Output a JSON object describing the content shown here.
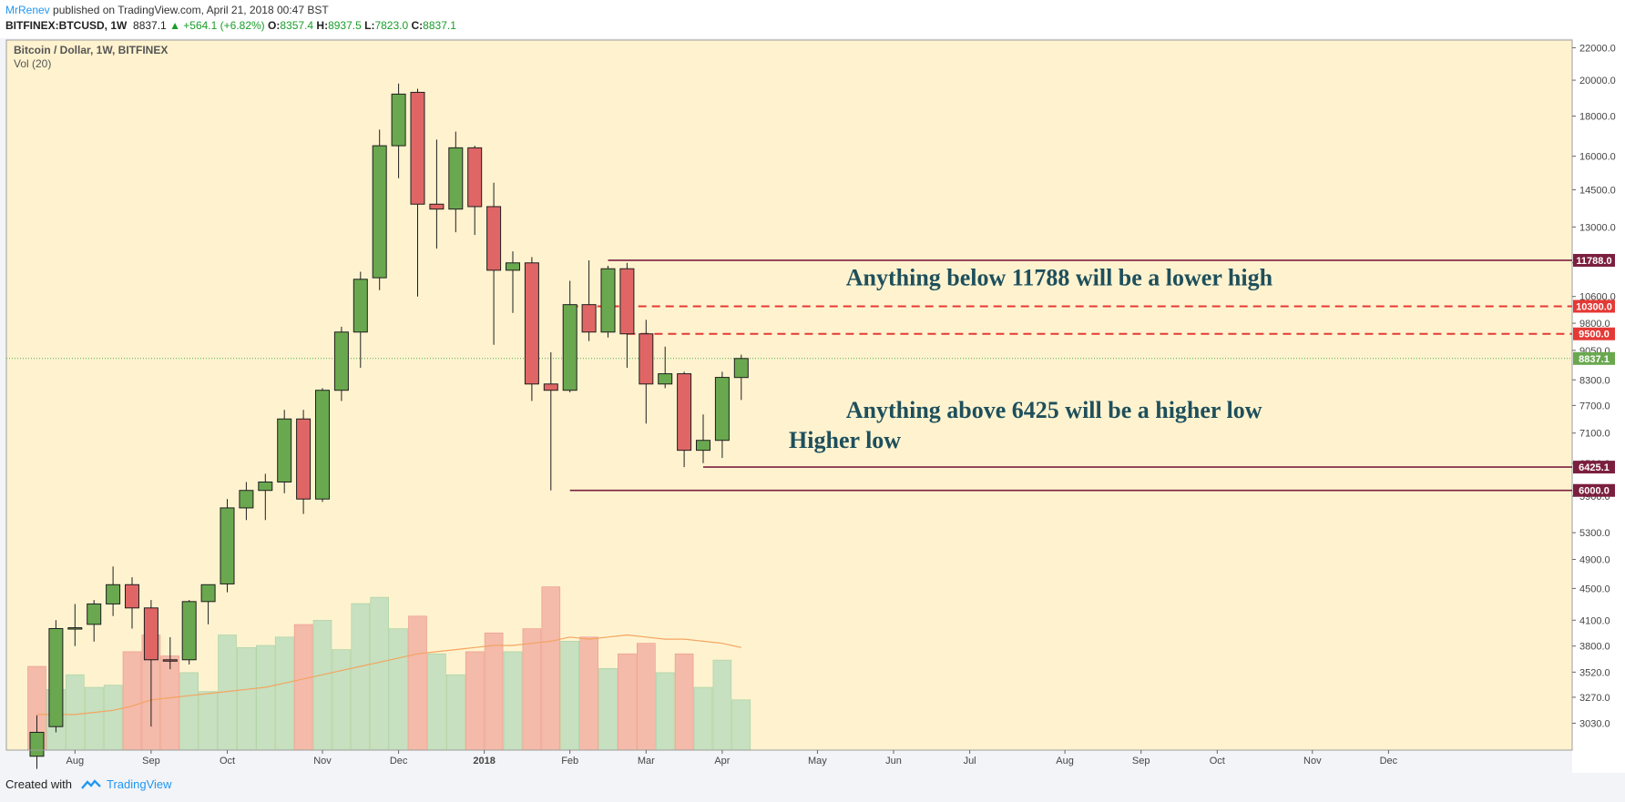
{
  "header": {
    "author": "MrRenev",
    "published": " published on TradingView.com, April 21, 2018 00:47 BST",
    "symbol": "BITFINEX:BTCUSD, 1W",
    "last": "8837.1",
    "change": "▲ +564.1 (+6.82%)",
    "o_label": "O:",
    "o_value": "8357.4",
    "h_label": "H:",
    "h_value": "8937.5",
    "l_label": "L:",
    "l_value": "7823.0",
    "c_label": "C:",
    "c_value": "8837.1"
  },
  "footer": {
    "created_with": "Created with",
    "brand": "TradingView"
  },
  "colors": {
    "bg": "#fff3cf",
    "up": "#6aa84f",
    "down": "#e06666",
    "vol_up": "#c6e0c0",
    "vol_down": "#f4baaa",
    "ma": "#f4a460",
    "level_line": "#7b1f3e",
    "dashed": "#e53935"
  },
  "chart_data": {
    "type": "candlestick",
    "title": "Bitcoin / Dollar, 1W, BITFINEX",
    "indicator_label": "Vol (20)",
    "y_scale": "log",
    "ylim": [
      2800,
      22500
    ],
    "y_ticks": [
      22000.0,
      20000.0,
      18000.0,
      16000.0,
      14500.0,
      13000.0,
      11700.0,
      10600.0,
      9800.0,
      9050.0,
      8300.0,
      7700.0,
      7100.0,
      6500.0,
      5900.0,
      5300.0,
      4900.0,
      4500.0,
      4100.0,
      3800.0,
      3520.0,
      3270.0,
      3030.0
    ],
    "x_ticks": [
      {
        "label": "Aug",
        "week": 2
      },
      {
        "label": "Sep",
        "week": 6
      },
      {
        "label": "Oct",
        "week": 10
      },
      {
        "label": "Nov",
        "week": 15
      },
      {
        "label": "Dec",
        "week": 19
      },
      {
        "label": "2018",
        "week": 23.5
      },
      {
        "label": "Feb",
        "week": 28
      },
      {
        "label": "Mar",
        "week": 32
      },
      {
        "label": "Apr",
        "week": 36
      },
      {
        "label": "May",
        "week": 41
      },
      {
        "label": "Jun",
        "week": 45
      },
      {
        "label": "Jul",
        "week": 49
      },
      {
        "label": "Aug",
        "week": 54
      },
      {
        "label": "Sep",
        "week": 58
      },
      {
        "label": "Oct",
        "week": 62
      },
      {
        "label": "Nov",
        "week": 67
      },
      {
        "label": "Dec",
        "week": 71
      }
    ],
    "candles": [
      {
        "o": 2750,
        "h": 3100,
        "l": 2650,
        "c": 2950
      },
      {
        "o": 3000,
        "h": 4100,
        "l": 2950,
        "c": 4000
      },
      {
        "o": 4000,
        "h": 4300,
        "l": 3800,
        "c": 4010
      },
      {
        "o": 4050,
        "h": 4350,
        "l": 3850,
        "c": 4300
      },
      {
        "o": 4300,
        "h": 4800,
        "l": 4150,
        "c": 4550
      },
      {
        "o": 4550,
        "h": 4650,
        "l": 4000,
        "c": 4250
      },
      {
        "o": 4250,
        "h": 4350,
        "l": 3000,
        "c": 3650
      },
      {
        "o": 3650,
        "h": 3900,
        "l": 3550,
        "c": 3640
      },
      {
        "o": 3650,
        "h": 4350,
        "l": 3600,
        "c": 4330
      },
      {
        "o": 4330,
        "h": 4550,
        "l": 4050,
        "c": 4550
      },
      {
        "o": 4560,
        "h": 5850,
        "l": 4450,
        "c": 5700
      },
      {
        "o": 5700,
        "h": 6150,
        "l": 5500,
        "c": 6000
      },
      {
        "o": 6000,
        "h": 6300,
        "l": 5500,
        "c": 6150
      },
      {
        "o": 6150,
        "h": 7600,
        "l": 5950,
        "c": 7400
      },
      {
        "o": 7400,
        "h": 7600,
        "l": 5600,
        "c": 5850
      },
      {
        "o": 5850,
        "h": 8100,
        "l": 5800,
        "c": 8050
      },
      {
        "o": 8050,
        "h": 9700,
        "l": 7800,
        "c": 9550
      },
      {
        "o": 9550,
        "h": 11400,
        "l": 8600,
        "c": 11150
      },
      {
        "o": 11200,
        "h": 17300,
        "l": 10800,
        "c": 16500
      },
      {
        "o": 16500,
        "h": 19800,
        "l": 15000,
        "c": 19200
      },
      {
        "o": 19300,
        "h": 19500,
        "l": 10600,
        "c": 13900
      },
      {
        "o": 13900,
        "h": 16800,
        "l": 12200,
        "c": 13700
      },
      {
        "o": 13700,
        "h": 17200,
        "l": 12800,
        "c": 16400
      },
      {
        "o": 16400,
        "h": 16500,
        "l": 12700,
        "c": 13800
      },
      {
        "o": 13800,
        "h": 14800,
        "l": 9200,
        "c": 11450
      },
      {
        "o": 11450,
        "h": 12100,
        "l": 10100,
        "c": 11700
      },
      {
        "o": 11700,
        "h": 11900,
        "l": 7800,
        "c": 8200
      },
      {
        "o": 8200,
        "h": 9000,
        "l": 6000,
        "c": 8050
      },
      {
        "o": 8050,
        "h": 11100,
        "l": 8000,
        "c": 10350
      },
      {
        "o": 10350,
        "h": 11788,
        "l": 9300,
        "c": 9550
      },
      {
        "o": 9550,
        "h": 11600,
        "l": 9400,
        "c": 11500
      },
      {
        "o": 11500,
        "h": 11700,
        "l": 8600,
        "c": 9500
      },
      {
        "o": 9500,
        "h": 9900,
        "l": 7300,
        "c": 8200
      },
      {
        "o": 8200,
        "h": 9150,
        "l": 8100,
        "c": 8450
      },
      {
        "o": 8450,
        "h": 8500,
        "l": 6425,
        "c": 6750
      },
      {
        "o": 6750,
        "h": 7500,
        "l": 6500,
        "c": 6950
      },
      {
        "o": 6950,
        "h": 8500,
        "l": 6600,
        "c": 8360
      },
      {
        "o": 8357.4,
        "h": 8937.5,
        "l": 7823,
        "c": 8837.1
      }
    ],
    "volume": [
      {
        "v": 0.4,
        "up": false
      },
      {
        "v": 0.29,
        "up": true
      },
      {
        "v": 0.36,
        "up": true
      },
      {
        "v": 0.3,
        "up": true
      },
      {
        "v": 0.31,
        "up": true
      },
      {
        "v": 0.47,
        "up": false
      },
      {
        "v": 0.55,
        "up": false
      },
      {
        "v": 0.45,
        "up": false
      },
      {
        "v": 0.37,
        "up": true
      },
      {
        "v": 0.28,
        "up": true
      },
      {
        "v": 0.55,
        "up": true
      },
      {
        "v": 0.49,
        "up": true
      },
      {
        "v": 0.5,
        "up": true
      },
      {
        "v": 0.54,
        "up": true
      },
      {
        "v": 0.6,
        "up": false
      },
      {
        "v": 0.62,
        "up": true
      },
      {
        "v": 0.48,
        "up": true
      },
      {
        "v": 0.7,
        "up": true
      },
      {
        "v": 0.73,
        "up": true
      },
      {
        "v": 0.58,
        "up": true
      },
      {
        "v": 0.64,
        "up": false
      },
      {
        "v": 0.46,
        "up": true
      },
      {
        "v": 0.36,
        "up": true
      },
      {
        "v": 0.47,
        "up": false
      },
      {
        "v": 0.56,
        "up": false
      },
      {
        "v": 0.47,
        "up": true
      },
      {
        "v": 0.58,
        "up": false
      },
      {
        "v": 0.78,
        "up": false
      },
      {
        "v": 0.52,
        "up": true
      },
      {
        "v": 0.54,
        "up": false
      },
      {
        "v": 0.39,
        "up": true
      },
      {
        "v": 0.46,
        "up": false
      },
      {
        "v": 0.51,
        "up": false
      },
      {
        "v": 0.37,
        "up": true
      },
      {
        "v": 0.46,
        "up": false
      },
      {
        "v": 0.3,
        "up": true
      },
      {
        "v": 0.43,
        "up": true
      },
      {
        "v": 0.24,
        "up": true
      }
    ],
    "volume_ma": [
      0.17,
      0.17,
      0.17,
      0.18,
      0.19,
      0.21,
      0.24,
      0.25,
      0.26,
      0.27,
      0.28,
      0.29,
      0.3,
      0.32,
      0.34,
      0.36,
      0.38,
      0.4,
      0.42,
      0.44,
      0.46,
      0.47,
      0.48,
      0.49,
      0.5,
      0.5,
      0.51,
      0.52,
      0.54,
      0.53,
      0.54,
      0.55,
      0.54,
      0.53,
      0.53,
      0.52,
      0.51,
      0.49
    ],
    "levels": [
      {
        "price": 11788.0,
        "label": "11788.0",
        "style": "solid",
        "start_week": 30
      },
      {
        "price": 10300.0,
        "label": "10300.0",
        "style": "dashed",
        "start_week": 28
      },
      {
        "price": 9500.0,
        "label": "9500.0",
        "style": "dashed",
        "start_week": 31
      },
      {
        "price": 6425.1,
        "label": "6425.1",
        "style": "solid",
        "start_week": 35
      },
      {
        "price": 6000.0,
        "label": "6000.0",
        "style": "solid",
        "start_week": 28
      }
    ],
    "last_price": {
      "price": 8837.1,
      "label": "8837.1"
    },
    "annotations": [
      {
        "text": "Anything below 11788 will be a lower high",
        "price": 10950,
        "week": 42.5
      },
      {
        "text": "Anything above 6425 will be a higher low",
        "price": 7420,
        "week": 42.5
      },
      {
        "text": "Higher low",
        "price": 6800,
        "week": 39.5
      }
    ]
  }
}
